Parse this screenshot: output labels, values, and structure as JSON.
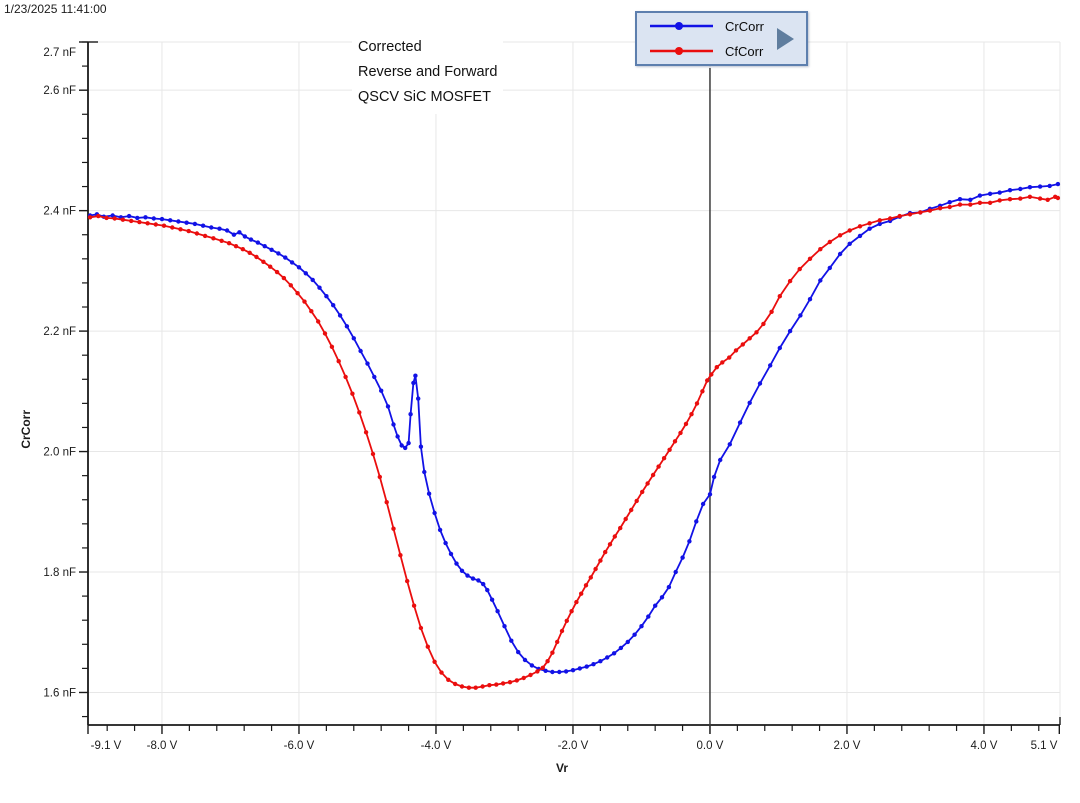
{
  "timestamp": "1/23/2025 11:41:00",
  "annotation": {
    "line1": "Corrected",
    "line2": "Reverse and Forward",
    "line3": "QSCV SiC MOSFET"
  },
  "legend": {
    "items": [
      {
        "label": "CrCorr",
        "color": "#1212e6"
      },
      {
        "label": "CfCorr",
        "color": "#ea0e0e"
      }
    ],
    "arrow_icon": "right-triangle",
    "arrow_color": "#5f7d9e",
    "background": "#dbe4f2",
    "border_color": "#5d7fae"
  },
  "cursor": {
    "x_value": 0.0,
    "color": "#3c3c3c"
  },
  "colors": {
    "axis": "#1a1a1a",
    "grid": "#e7e7e7",
    "tick_text": "#1c1c1c",
    "background": "#ffffff"
  },
  "chart_data": {
    "type": "line",
    "title": "",
    "xlabel": "Vr",
    "ylabel": "CrCorr",
    "grid": true,
    "legend_position": "top",
    "xlim": [
      -9.08,
      5.11
    ],
    "ylim": [
      1.546,
      2.68
    ],
    "x_ticks": [
      {
        "label": "-9.1 V",
        "v": -9.1
      },
      {
        "label": "-8.0 V",
        "v": -8.0
      },
      {
        "label": "-6.0 V",
        "v": -6.0
      },
      {
        "label": "-4.0 V",
        "v": -4.0
      },
      {
        "label": "-2.0 V",
        "v": -2.0
      },
      {
        "label": "0.0 V",
        "v": 0.0
      },
      {
        "label": "2.0 V",
        "v": 2.0
      },
      {
        "label": "4.0 V",
        "v": 4.0
      },
      {
        "label": "5.1 V",
        "v": 5.1
      }
    ],
    "y_ticks": [
      {
        "label": "2.7 nF",
        "v": 2.7
      },
      {
        "label": "2.6 nF",
        "v": 2.6
      },
      {
        "label": "2.4 nF",
        "v": 2.4
      },
      {
        "label": "2.2 nF",
        "v": 2.2
      },
      {
        "label": "2.0 nF",
        "v": 2.0
      },
      {
        "label": "1.8 nF",
        "v": 1.8
      },
      {
        "label": "1.6 nF",
        "v": 1.6
      }
    ],
    "x_minor_step": 0.4,
    "y_minor_step": 0.04,
    "series": [
      {
        "name": "CrCorr",
        "color": "#1212e6",
        "marker": "circle",
        "points": [
          [
            -9.05,
            2.392
          ],
          [
            -8.95,
            2.394
          ],
          [
            -8.85,
            2.39
          ],
          [
            -8.72,
            2.392
          ],
          [
            -8.6,
            2.389
          ],
          [
            -8.48,
            2.391
          ],
          [
            -8.36,
            2.388
          ],
          [
            -8.24,
            2.389
          ],
          [
            -8.12,
            2.387
          ],
          [
            -8.0,
            2.386
          ],
          [
            -7.88,
            2.384
          ],
          [
            -7.76,
            2.382
          ],
          [
            -7.64,
            2.38
          ],
          [
            -7.52,
            2.378
          ],
          [
            -7.4,
            2.375
          ],
          [
            -7.28,
            2.372
          ],
          [
            -7.16,
            2.37
          ],
          [
            -7.05,
            2.367
          ],
          [
            -6.95,
            2.36
          ],
          [
            -6.87,
            2.364
          ],
          [
            -6.79,
            2.357
          ],
          [
            -6.7,
            2.352
          ],
          [
            -6.6,
            2.347
          ],
          [
            -6.5,
            2.341
          ],
          [
            -6.4,
            2.335
          ],
          [
            -6.3,
            2.329
          ],
          [
            -6.2,
            2.322
          ],
          [
            -6.1,
            2.314
          ],
          [
            -6.0,
            2.306
          ],
          [
            -5.9,
            2.296
          ],
          [
            -5.8,
            2.285
          ],
          [
            -5.7,
            2.272
          ],
          [
            -5.6,
            2.258
          ],
          [
            -5.5,
            2.243
          ],
          [
            -5.4,
            2.226
          ],
          [
            -5.3,
            2.208
          ],
          [
            -5.2,
            2.188
          ],
          [
            -5.1,
            2.167
          ],
          [
            -5.0,
            2.146
          ],
          [
            -4.9,
            2.124
          ],
          [
            -4.8,
            2.101
          ],
          [
            -4.7,
            2.075
          ],
          [
            -4.62,
            2.045
          ],
          [
            -4.56,
            2.025
          ],
          [
            -4.5,
            2.01
          ],
          [
            -4.45,
            2.006
          ],
          [
            -4.4,
            2.014
          ],
          [
            -4.37,
            2.062
          ],
          [
            -4.33,
            2.114
          ],
          [
            -4.3,
            2.126
          ],
          [
            -4.26,
            2.088
          ],
          [
            -4.22,
            2.008
          ],
          [
            -4.17,
            1.966
          ],
          [
            -4.1,
            1.93
          ],
          [
            -4.02,
            1.898
          ],
          [
            -3.94,
            1.87
          ],
          [
            -3.86,
            1.848
          ],
          [
            -3.78,
            1.83
          ],
          [
            -3.7,
            1.814
          ],
          [
            -3.62,
            1.802
          ],
          [
            -3.54,
            1.794
          ],
          [
            -3.46,
            1.789
          ],
          [
            -3.38,
            1.786
          ],
          [
            -3.31,
            1.78
          ],
          [
            -3.25,
            1.77
          ],
          [
            -3.18,
            1.754
          ],
          [
            -3.1,
            1.735
          ],
          [
            -3.0,
            1.71
          ],
          [
            -2.9,
            1.686
          ],
          [
            -2.8,
            1.667
          ],
          [
            -2.7,
            1.654
          ],
          [
            -2.6,
            1.645
          ],
          [
            -2.5,
            1.639
          ],
          [
            -2.4,
            1.636
          ],
          [
            -2.3,
            1.634
          ],
          [
            -2.2,
            1.634
          ],
          [
            -2.1,
            1.635
          ],
          [
            -2.0,
            1.637
          ],
          [
            -1.9,
            1.64
          ],
          [
            -1.8,
            1.643
          ],
          [
            -1.7,
            1.647
          ],
          [
            -1.6,
            1.652
          ],
          [
            -1.5,
            1.658
          ],
          [
            -1.4,
            1.665
          ],
          [
            -1.3,
            1.674
          ],
          [
            -1.2,
            1.684
          ],
          [
            -1.1,
            1.696
          ],
          [
            -1.0,
            1.71
          ],
          [
            -0.9,
            1.726
          ],
          [
            -0.8,
            1.744
          ],
          [
            -0.7,
            1.758
          ],
          [
            -0.6,
            1.775
          ],
          [
            -0.5,
            1.8
          ],
          [
            -0.4,
            1.824
          ],
          [
            -0.3,
            1.851
          ],
          [
            -0.2,
            1.884
          ],
          [
            -0.1,
            1.913
          ],
          [
            0.0,
            1.929
          ],
          [
            0.06,
            1.958
          ],
          [
            0.15,
            1.986
          ],
          [
            0.29,
            2.012
          ],
          [
            0.44,
            2.048
          ],
          [
            0.58,
            2.081
          ],
          [
            0.73,
            2.113
          ],
          [
            0.88,
            2.143
          ],
          [
            1.02,
            2.172
          ],
          [
            1.17,
            2.2
          ],
          [
            1.32,
            2.226
          ],
          [
            1.46,
            2.253
          ],
          [
            1.61,
            2.284
          ],
          [
            1.75,
            2.305
          ],
          [
            1.9,
            2.328
          ],
          [
            2.04,
            2.345
          ],
          [
            2.19,
            2.358
          ],
          [
            2.33,
            2.37
          ],
          [
            2.48,
            2.378
          ],
          [
            2.63,
            2.383
          ],
          [
            2.77,
            2.39
          ],
          [
            2.92,
            2.396
          ],
          [
            3.07,
            2.397
          ],
          [
            3.21,
            2.403
          ],
          [
            3.36,
            2.408
          ],
          [
            3.5,
            2.414
          ],
          [
            3.65,
            2.419
          ],
          [
            3.8,
            2.418
          ],
          [
            3.94,
            2.425
          ],
          [
            4.09,
            2.428
          ],
          [
            4.23,
            2.43
          ],
          [
            4.38,
            2.434
          ],
          [
            4.53,
            2.436
          ],
          [
            4.67,
            2.439
          ],
          [
            4.82,
            2.44
          ],
          [
            4.96,
            2.441
          ],
          [
            5.08,
            2.444
          ]
        ]
      },
      {
        "name": "CfCorr",
        "color": "#ea0e0e",
        "marker": "circle",
        "points": [
          [
            -9.05,
            2.389
          ],
          [
            -8.93,
            2.391
          ],
          [
            -8.81,
            2.388
          ],
          [
            -8.69,
            2.387
          ],
          [
            -8.57,
            2.385
          ],
          [
            -8.45,
            2.383
          ],
          [
            -8.33,
            2.381
          ],
          [
            -8.21,
            2.379
          ],
          [
            -8.09,
            2.377
          ],
          [
            -7.97,
            2.375
          ],
          [
            -7.85,
            2.372
          ],
          [
            -7.73,
            2.369
          ],
          [
            -7.61,
            2.366
          ],
          [
            -7.49,
            2.362
          ],
          [
            -7.37,
            2.358
          ],
          [
            -7.25,
            2.354
          ],
          [
            -7.13,
            2.35
          ],
          [
            -7.02,
            2.346
          ],
          [
            -6.92,
            2.341
          ],
          [
            -6.82,
            2.336
          ],
          [
            -6.72,
            2.33
          ],
          [
            -6.62,
            2.323
          ],
          [
            -6.52,
            2.315
          ],
          [
            -6.42,
            2.307
          ],
          [
            -6.32,
            2.298
          ],
          [
            -6.22,
            2.288
          ],
          [
            -6.12,
            2.276
          ],
          [
            -6.02,
            2.263
          ],
          [
            -5.92,
            2.249
          ],
          [
            -5.82,
            2.233
          ],
          [
            -5.72,
            2.216
          ],
          [
            -5.62,
            2.196
          ],
          [
            -5.52,
            2.174
          ],
          [
            -5.42,
            2.15
          ],
          [
            -5.32,
            2.124
          ],
          [
            -5.22,
            2.096
          ],
          [
            -5.12,
            2.065
          ],
          [
            -5.02,
            2.032
          ],
          [
            -4.92,
            1.996
          ],
          [
            -4.82,
            1.958
          ],
          [
            -4.72,
            1.916
          ],
          [
            -4.62,
            1.872
          ],
          [
            -4.52,
            1.828
          ],
          [
            -4.42,
            1.785
          ],
          [
            -4.32,
            1.744
          ],
          [
            -4.22,
            1.707
          ],
          [
            -4.12,
            1.676
          ],
          [
            -4.02,
            1.651
          ],
          [
            -3.92,
            1.633
          ],
          [
            -3.82,
            1.621
          ],
          [
            -3.72,
            1.614
          ],
          [
            -3.62,
            1.61
          ],
          [
            -3.52,
            1.608
          ],
          [
            -3.42,
            1.608
          ],
          [
            -3.32,
            1.61
          ],
          [
            -3.22,
            1.612
          ],
          [
            -3.12,
            1.613
          ],
          [
            -3.02,
            1.615
          ],
          [
            -2.92,
            1.617
          ],
          [
            -2.82,
            1.62
          ],
          [
            -2.72,
            1.624
          ],
          [
            -2.62,
            1.629
          ],
          [
            -2.52,
            1.635
          ],
          [
            -2.44,
            1.641
          ],
          [
            -2.37,
            1.652
          ],
          [
            -2.3,
            1.666
          ],
          [
            -2.23,
            1.684
          ],
          [
            -2.16,
            1.702
          ],
          [
            -2.09,
            1.719
          ],
          [
            -2.02,
            1.735
          ],
          [
            -1.95,
            1.75
          ],
          [
            -1.88,
            1.764
          ],
          [
            -1.81,
            1.778
          ],
          [
            -1.74,
            1.791
          ],
          [
            -1.67,
            1.805
          ],
          [
            -1.6,
            1.819
          ],
          [
            -1.53,
            1.833
          ],
          [
            -1.46,
            1.846
          ],
          [
            -1.39,
            1.859
          ],
          [
            -1.31,
            1.873
          ],
          [
            -1.23,
            1.888
          ],
          [
            -1.15,
            1.903
          ],
          [
            -1.07,
            1.918
          ],
          [
            -0.99,
            1.933
          ],
          [
            -0.91,
            1.947
          ],
          [
            -0.83,
            1.961
          ],
          [
            -0.75,
            1.975
          ],
          [
            -0.67,
            1.989
          ],
          [
            -0.59,
            2.003
          ],
          [
            -0.51,
            2.017
          ],
          [
            -0.43,
            2.031
          ],
          [
            -0.35,
            2.046
          ],
          [
            -0.27,
            2.062
          ],
          [
            -0.19,
            2.08
          ],
          [
            -0.11,
            2.1
          ],
          [
            -0.04,
            2.118
          ],
          [
            0.02,
            2.128
          ],
          [
            0.1,
            2.14
          ],
          [
            0.18,
            2.148
          ],
          [
            0.28,
            2.156
          ],
          [
            0.38,
            2.168
          ],
          [
            0.48,
            2.178
          ],
          [
            0.58,
            2.188
          ],
          [
            0.68,
            2.198
          ],
          [
            0.78,
            2.212
          ],
          [
            0.9,
            2.232
          ],
          [
            1.02,
            2.258
          ],
          [
            1.17,
            2.283
          ],
          [
            1.31,
            2.303
          ],
          [
            1.46,
            2.32
          ],
          [
            1.61,
            2.336
          ],
          [
            1.75,
            2.348
          ],
          [
            1.9,
            2.359
          ],
          [
            2.04,
            2.367
          ],
          [
            2.19,
            2.374
          ],
          [
            2.33,
            2.379
          ],
          [
            2.48,
            2.384
          ],
          [
            2.63,
            2.387
          ],
          [
            2.77,
            2.391
          ],
          [
            2.92,
            2.394
          ],
          [
            3.07,
            2.397
          ],
          [
            3.21,
            2.4
          ],
          [
            3.36,
            2.404
          ],
          [
            3.5,
            2.406
          ],
          [
            3.65,
            2.41
          ],
          [
            3.8,
            2.41
          ],
          [
            3.94,
            2.413
          ],
          [
            4.09,
            2.413
          ],
          [
            4.23,
            2.417
          ],
          [
            4.38,
            2.419
          ],
          [
            4.53,
            2.42
          ],
          [
            4.67,
            2.423
          ],
          [
            4.82,
            2.42
          ],
          [
            4.93,
            2.418
          ],
          [
            5.04,
            2.423
          ],
          [
            5.08,
            2.421
          ]
        ]
      }
    ]
  }
}
